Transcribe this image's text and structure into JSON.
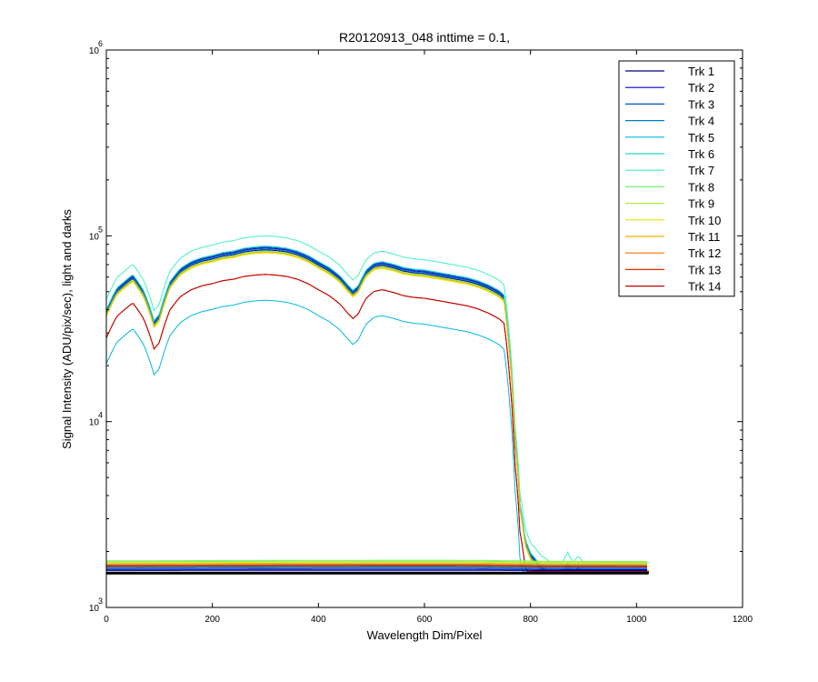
{
  "chart_data": {
    "type": "line",
    "title": "R20120913_048 inttime = 0.1,",
    "xlabel": "Wavelength Dim/Pixel",
    "ylabel": "Signal Intensity (ADU/pix/sec), light and darks",
    "xlim": [
      0,
      1200
    ],
    "ylim": [
      1000,
      1000000
    ],
    "yscale": "log",
    "xticks": [
      0,
      200,
      400,
      600,
      800,
      1000,
      1200
    ],
    "yticks": [
      {
        "value": 1000,
        "base": "10",
        "exp": "3"
      },
      {
        "value": 10000,
        "base": "10",
        "exp": "4"
      },
      {
        "value": 100000,
        "base": "10",
        "exp": "5"
      },
      {
        "value": 1000000,
        "base": "10",
        "exp": "6"
      }
    ],
    "grid": false,
    "legend_position": "top-right",
    "profile_x": [
      0,
      20,
      50,
      70,
      90,
      100,
      120,
      140,
      160,
      180,
      200,
      220,
      240,
      260,
      280,
      300,
      320,
      340,
      360,
      380,
      400,
      420,
      440,
      455,
      465,
      475,
      490,
      505,
      520,
      540,
      560,
      580,
      600,
      620,
      640,
      660,
      680,
      700,
      720,
      740,
      750,
      760,
      770,
      780,
      790,
      800,
      820,
      840,
      860,
      870,
      880,
      890,
      900,
      920,
      940,
      960,
      980,
      1000,
      1023
    ],
    "profile_rel": [
      0.55,
      0.72,
      0.85,
      0.7,
      0.48,
      0.52,
      0.78,
      0.92,
      1.0,
      1.05,
      1.08,
      1.12,
      1.14,
      1.18,
      1.2,
      1.21,
      1.2,
      1.18,
      1.14,
      1.08,
      1.0,
      0.93,
      0.84,
      0.75,
      0.7,
      0.74,
      0.9,
      0.98,
      1.0,
      0.97,
      0.93,
      0.91,
      0.9,
      0.88,
      0.86,
      0.84,
      0.82,
      0.79,
      0.75,
      0.7,
      0.66,
      0.35,
      0.12,
      0.05,
      0.032,
      0.027,
      0.023,
      0.021,
      0.021,
      0.024,
      0.021,
      0.023,
      0.021,
      0.021,
      0.021,
      0.021,
      0.021,
      0.021,
      0.021
    ],
    "dark_x": [
      0,
      200,
      400,
      600,
      700,
      780,
      840,
      1023
    ],
    "dark_rel": [
      1.0,
      1.03,
      1.05,
      1.06,
      1.05,
      1.0,
      0.96,
      0.95
    ],
    "series": [
      {
        "name": "Trk 1",
        "color": "#000080",
        "peak": 84000,
        "dark": 1580
      },
      {
        "name": "Trk 2",
        "color": "#0000c8",
        "peak": 86000,
        "dark": 1600
      },
      {
        "name": "Trk 3",
        "color": "#0050c0",
        "peak": 87000,
        "dark": 1620
      },
      {
        "name": "Trk 4",
        "color": "#007ec8",
        "peak": 85000,
        "dark": 1640
      },
      {
        "name": "Trk 5",
        "color": "#00b8e0",
        "peak": 45000,
        "dark": 1650
      },
      {
        "name": "Trk 6",
        "color": "#20d8c8",
        "peak": 88000,
        "dark": 1700
      },
      {
        "name": "Trk 7",
        "color": "#40f0c8",
        "peak": 100000,
        "dark": 1760
      },
      {
        "name": "Trk 8",
        "color": "#70f070",
        "peak": 83000,
        "dark": 1780
      },
      {
        "name": "Trk 9",
        "color": "#b0f040",
        "peak": 82000,
        "dark": 1770
      },
      {
        "name": "Trk 10",
        "color": "#e8e800",
        "peak": 81000,
        "dark": 1740
      },
      {
        "name": "Trk 11",
        "color": "#f0b000",
        "peak": 82000,
        "dark": 1720
      },
      {
        "name": "Trk 12",
        "color": "#f07000",
        "peak": 62000,
        "dark": 1690
      },
      {
        "name": "Trk 13",
        "color": "#e03000",
        "peak": 62000,
        "dark": 1680
      },
      {
        "name": "Trk 14",
        "color": "#c00000",
        "peak": 62000,
        "dark": 1660
      }
    ],
    "floor_dark": {
      "color": "#000000",
      "value": 1530
    }
  }
}
